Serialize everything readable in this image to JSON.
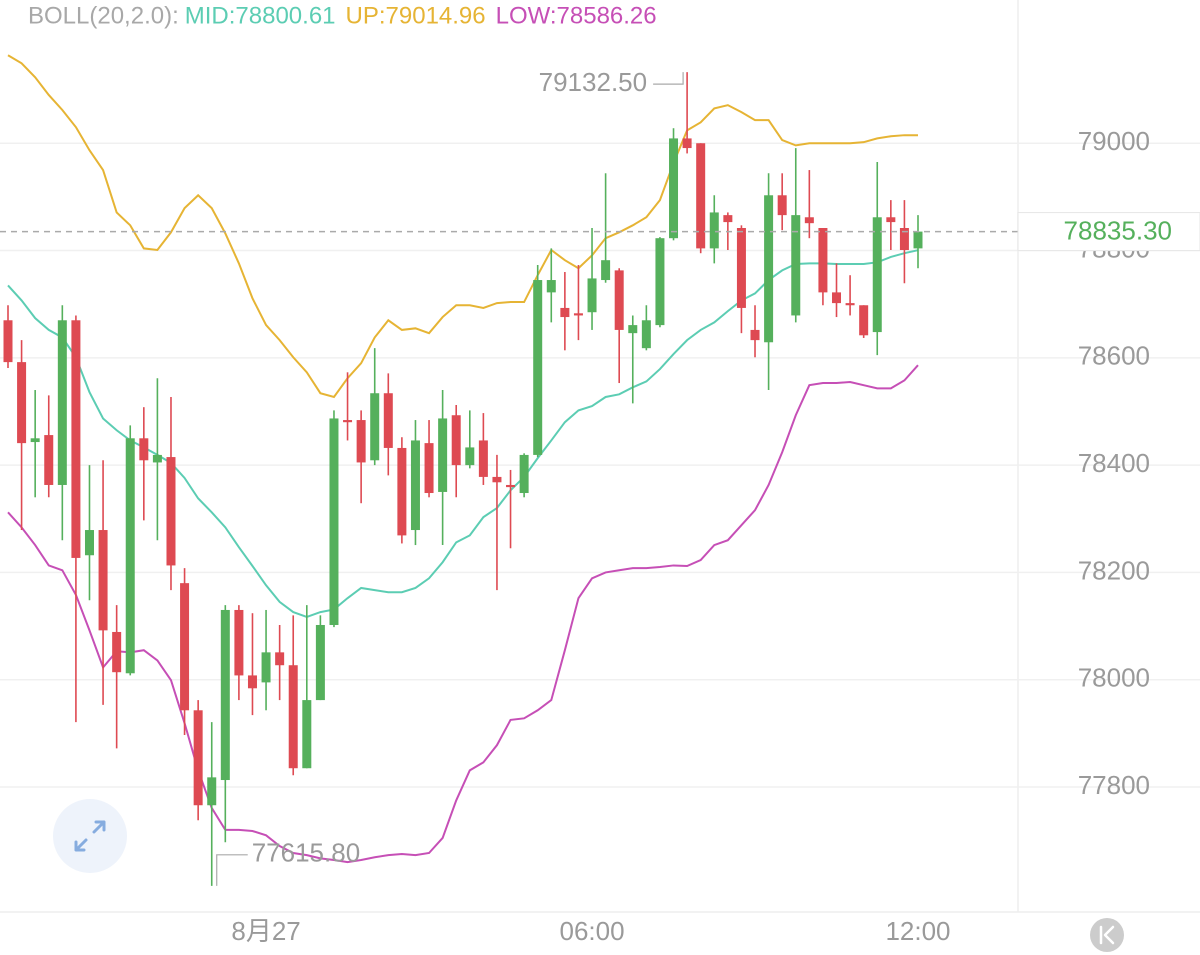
{
  "chart_data": {
    "type": "candlestick",
    "indicator_label": "BOLL(20,2.0):",
    "categories": [
      null,
      null,
      null,
      null,
      null,
      null,
      null,
      null,
      null,
      null,
      null,
      null,
      null,
      null,
      null,
      null,
      null,
      null,
      null,
      "8月27",
      null,
      null,
      null,
      null,
      null,
      null,
      null,
      null,
      null,
      null,
      null,
      null,
      null,
      null,
      null,
      null,
      null,
      null,
      null,
      null,
      null,
      null,
      null,
      "06:00",
      null,
      null,
      null,
      null,
      null,
      null,
      null,
      null,
      null,
      null,
      null,
      null,
      null,
      null,
      null,
      null,
      null,
      null,
      null,
      null,
      null,
      null,
      null,
      "12:00"
    ],
    "ylim": [
      77567,
      79267
    ],
    "yticks": [
      77800,
      78000,
      78200,
      78400,
      78600,
      78800,
      79000
    ],
    "grid": true,
    "up_color": "#55b05c",
    "down_color": "#de4a52",
    "open": [
      78670,
      78592,
      78443,
      78456,
      78363,
      78670,
      78232,
      78279,
      78089,
      78012,
      78450,
      78405,
      78415,
      78180,
      77943,
      77766,
      77813,
      78130,
      78008,
      77995,
      78051,
      78027,
      77835,
      77962,
      78102,
      78484,
      78484,
      78409,
      78534,
      78432,
      78279,
      78441,
      78350,
      78493,
      78400,
      78446,
      78378,
      78363,
      78348,
      78419,
      78722,
      78693,
      78683,
      78685,
      78745,
      78763,
      78646,
      78618,
      78661,
      78823,
      79009,
      79000,
      78804,
      78866,
      78842,
      78652,
      78629,
      78903,
      78679,
      78862,
      78842,
      78722,
      78702,
      78698,
      78648,
      78862,
      78842,
      78804
    ],
    "high": [
      78698,
      78633,
      78540,
      78530,
      78698,
      78679,
      78400,
      78409,
      78139,
      78474,
      78508,
      78562,
      78527,
      78208,
      77962,
      77921,
      78139,
      78139,
      78124,
      78130,
      78102,
      78120,
      78139,
      78120,
      78502,
      78573,
      78502,
      78618,
      78571,
      78452,
      78484,
      78484,
      78540,
      78512,
      78502,
      78497,
      78419,
      78391,
      78422,
      78773,
      78804,
      78760,
      78773,
      78842,
      78944,
      78767,
      78679,
      78698,
      78825,
      79028,
      79132.5,
      79000,
      78903,
      78871,
      78847,
      78698,
      78944,
      78944,
      78991,
      78950,
      78842,
      78776,
      78754,
      78698,
      78965,
      78894,
      78894,
      78866
    ],
    "low": [
      78581,
      78279,
      78340,
      78340,
      78260,
      77921,
      78148,
      77953,
      77872,
      78008,
      78297,
      78260,
      78167,
      77897,
      77738,
      77615.8,
      77697,
      77962,
      77934,
      77943,
      77962,
      77822,
      77835,
      77962,
      78098,
      78446,
      78329,
      78400,
      78381,
      78254,
      78251,
      78340,
      78251,
      78340,
      78394,
      78363,
      78167,
      78245,
      78340,
      78415,
      78666,
      78614,
      78633,
      78652,
      78740,
      78553,
      78515,
      78614,
      78657,
      78819,
      78981,
      78795,
      78776,
      78801,
      78646,
      78601,
      78540,
      78838,
      78666,
      78823,
      78698,
      78676,
      78679,
      78637,
      78605,
      78801,
      78739,
      78767
    ],
    "close": [
      78592,
      78441,
      78450,
      78363,
      78670,
      78227,
      78279,
      78092,
      78014,
      78450,
      78409,
      78419,
      78213,
      77943,
      77766,
      77818,
      78130,
      78008,
      77984,
      78051,
      78027,
      77835,
      77962,
      78102,
      78487,
      78480,
      78405,
      78534,
      78432,
      78269,
      78446,
      78348,
      78487,
      78400,
      78433,
      78378,
      78368,
      78359,
      78419,
      78745,
      78745,
      78676,
      78679,
      78748,
      78782,
      78652,
      78661,
      78670,
      78823,
      79009,
      78991,
      78804,
      78871,
      78853,
      78693,
      78633,
      78903,
      78866,
      78866,
      78851,
      78722,
      78702,
      78698,
      78642,
      78862,
      78853,
      78801,
      78835.3
    ],
    "bands": [
      {
        "name": "MID:78800.61",
        "color": "#5ccdb3",
        "values": [
          78735,
          78707,
          78674,
          78652,
          78638,
          78601,
          78536,
          78487,
          78465,
          78446,
          78433,
          78419,
          78404,
          78376,
          78338,
          78312,
          78284,
          78247,
          78212,
          78176,
          78145,
          78126,
          78117,
          78126,
          78131,
          78152,
          78171,
          78167,
          78163,
          78163,
          78171,
          78189,
          78219,
          78256,
          78269,
          78303,
          78320,
          78353,
          78378,
          78413,
          78446,
          78480,
          78502,
          78510,
          78527,
          78532,
          78545,
          78556,
          78579,
          78607,
          78633,
          78652,
          78666,
          78687,
          78707,
          78720,
          78745,
          78763,
          78775,
          78776,
          78776,
          78775,
          78775,
          78775,
          78778,
          78788,
          78795,
          78800.61
        ]
      },
      {
        "name": "UP:79014.96",
        "color": "#e6b434",
        "values": [
          79164,
          79149,
          79123,
          79090,
          79062,
          79030,
          78987,
          78950,
          78871,
          78847,
          78804,
          78801,
          78834,
          78879,
          78903,
          78879,
          78832,
          78776,
          78711,
          78661,
          78633,
          78601,
          78573,
          78534,
          78527,
          78562,
          78590,
          78638,
          78670,
          78652,
          78655,
          78646,
          78676,
          78698,
          78698,
          78693,
          78702,
          78704,
          78704,
          78754,
          78801,
          78782,
          78767,
          78791,
          78823,
          78834,
          78847,
          78862,
          78894,
          78963,
          79024,
          79039,
          79065,
          79071,
          79058,
          79043,
          79043,
          79006,
          78996,
          79000,
          79000,
          79000,
          79000,
          79002,
          79009,
          79013,
          79015,
          79014.96
        ]
      },
      {
        "name": "LOW:78586.26",
        "color": "#c64fb6",
        "values": [
          78312,
          78284,
          78251,
          78213,
          78204,
          78158,
          78092,
          78023,
          78053,
          78051,
          78055,
          78036,
          77999,
          77919,
          77831,
          77761,
          77720,
          77720,
          77718,
          77710,
          77690,
          77677,
          77673,
          77667,
          77664,
          77660,
          77664,
          77669,
          77673,
          77675,
          77673,
          77677,
          77705,
          77775,
          77831,
          77846,
          77878,
          77925,
          77928,
          77943,
          77962,
          78055,
          78152,
          78189,
          78200,
          78204,
          78208,
          78208,
          78210,
          78213,
          78212,
          78223,
          78251,
          78260,
          78288,
          78316,
          78363,
          78424,
          78493,
          78549,
          78553,
          78553,
          78555,
          78549,
          78543,
          78543,
          78558,
          78586.26
        ]
      }
    ],
    "high_label": "79132.50",
    "low_label": "77615.80",
    "last_price_label": "78835.30"
  }
}
